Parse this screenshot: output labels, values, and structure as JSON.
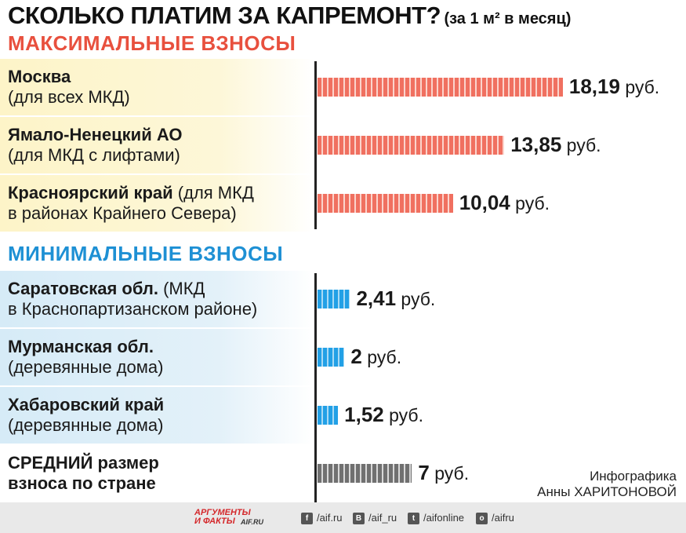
{
  "chart_data": {
    "type": "bar",
    "orientation": "horizontal",
    "title": "СКОЛЬКО ПЛАТИМ ЗА КАПРЕМОНТ?",
    "subtitle": "(за 1 м² в месяц)",
    "unit": "руб.",
    "groups": [
      {
        "name": "МАКСИМАЛЬНЫЕ ВЗНОСЫ",
        "color": "#f07060",
        "rows": [
          {
            "bold": "Москва",
            "line1_rest": "",
            "line2": "(для всех МКД)",
            "value": 18.19,
            "value_label": "18,19"
          },
          {
            "bold": "Ямало-Ненецкий АО",
            "line1_rest": "",
            "line2": "(для МКД с лифтами)",
            "value": 13.85,
            "value_label": "13,85"
          },
          {
            "bold": "Красноярский край",
            "line1_rest": " (для МКД",
            "line2": "в районах Крайнего Севера)",
            "value": 10.04,
            "value_label": "10,04"
          }
        ]
      },
      {
        "name": "МИНИМАЛЬНЫЕ ВЗНОСЫ",
        "color": "#22a0e6",
        "rows": [
          {
            "bold": "Саратовская обл.",
            "line1_rest": " (МКД",
            "line2": "в Краснопартизанском районе)",
            "value": 2.41,
            "value_label": "2,41"
          },
          {
            "bold": "Мурманская обл.",
            "line1_rest": "",
            "line2": "(деревянные дома)",
            "value": 2,
            "value_label": "2"
          },
          {
            "bold": "Хабаровский край",
            "line1_rest": "",
            "line2": "(деревянные дома)",
            "value": 1.52,
            "value_label": "1,52"
          }
        ]
      }
    ],
    "average": {
      "bold_line1": "СРЕДНИЙ",
      "line1_rest": " размер",
      "line2": "взноса по стране",
      "value": 7,
      "value_label": "7",
      "color": "#707070"
    }
  },
  "credit": {
    "line1": "Инфографика",
    "line2": "Анны ХАРИТОНОВОЙ"
  },
  "footer": {
    "logo_line1": "АРГУМЕНТЫ",
    "logo_line2": "И ФАКТЫ",
    "logo_site": "AIF.RU",
    "social": [
      {
        "icon": "facebook-icon",
        "glyph": "f",
        "label": "/aif.ru"
      },
      {
        "icon": "vk-icon",
        "glyph": "В",
        "label": "/aif_ru"
      },
      {
        "icon": "twitter-icon",
        "glyph": "t",
        "label": "/aifonline"
      },
      {
        "icon": "odnoklassniki-icon",
        "glyph": "о",
        "label": "/aifru"
      }
    ]
  }
}
